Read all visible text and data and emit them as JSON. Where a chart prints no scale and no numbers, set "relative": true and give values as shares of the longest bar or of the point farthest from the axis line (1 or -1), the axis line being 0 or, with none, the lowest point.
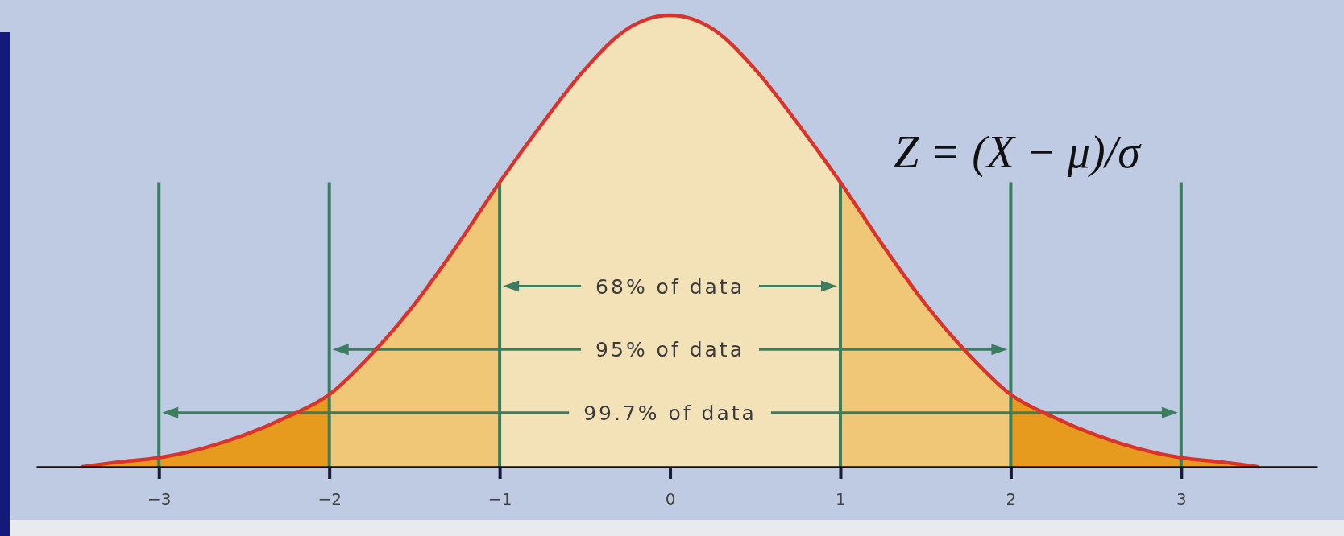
{
  "chart_data": {
    "type": "area",
    "relative": true,
    "xlim": [
      -3.72,
      3.8
    ],
    "xticks": [
      {
        "value": -3,
        "label": "−3"
      },
      {
        "value": -2,
        "label": "−2"
      },
      {
        "value": -1,
        "label": "−1"
      },
      0,
      1,
      2,
      3
    ],
    "series": [
      {
        "color": "#e69b1e",
        "x": [
          -3.45,
          -3.25,
          -3,
          -2.75,
          -2.5,
          -2.25,
          -2,
          0,
          2,
          2.25,
          2.5,
          2.75,
          3,
          3.25,
          3.45
        ],
        "values": [
          0,
          0.01,
          0.02,
          0.04,
          0.07,
          0.11,
          0.16,
          null,
          0.16,
          0.11,
          0.07,
          0.04,
          0.02,
          0.01,
          0
        ]
      },
      {
        "color": "#f0c777",
        "x": [
          -2,
          -1.75,
          -1.5,
          -1.25,
          -1,
          0,
          1,
          1.25,
          1.5,
          1.75,
          2
        ],
        "values": [
          0.16,
          0.25,
          0.36,
          0.49,
          0.63,
          null,
          0.63,
          0.49,
          0.36,
          0.25,
          0.16
        ]
      },
      {
        "color": "#f3e2b8",
        "x": [
          -1,
          -0.75,
          -0.5,
          -0.25,
          0,
          0.25,
          0.5,
          0.75,
          1
        ],
        "values": [
          0.63,
          0.76,
          0.88,
          0.97,
          1,
          0.97,
          0.88,
          0.76,
          0.63
        ]
      },
      {
        "type": "line",
        "color": "#d9342b",
        "x": [
          -3.45,
          -3.25,
          -3,
          -2.75,
          -2.5,
          -2.25,
          -2,
          -1.75,
          -1.5,
          -1.25,
          -1,
          -0.75,
          -0.5,
          -0.25,
          0,
          0.25,
          0.5,
          0.75,
          1,
          1.25,
          1.5,
          1.75,
          2,
          2.25,
          2.5,
          2.75,
          3,
          3.25,
          3.45
        ],
        "values": [
          0,
          0.01,
          0.02,
          0.04,
          0.07,
          0.11,
          0.16,
          0.25,
          0.36,
          0.49,
          0.63,
          0.76,
          0.88,
          0.97,
          1,
          0.97,
          0.88,
          0.76,
          0.63,
          0.49,
          0.36,
          0.25,
          0.16,
          0.11,
          0.07,
          0.04,
          0.02,
          0.01,
          0
        ]
      }
    ],
    "ref_lines": [
      {
        "axis": "x",
        "value": -1,
        "color": "#3b7e5f"
      },
      {
        "axis": "x",
        "value": 1,
        "color": "#3b7e5f"
      },
      {
        "axis": "x",
        "value": -2,
        "color": "#3b7e5f"
      },
      {
        "axis": "x",
        "value": 2,
        "color": "#3b7e5f"
      },
      {
        "axis": "x",
        "value": -3,
        "color": "#3b7e5f"
      },
      {
        "axis": "x",
        "value": 3,
        "color": "#3b7e5f"
      }
    ],
    "annotations": [
      "68% of data",
      "95% of data",
      "99.7% of data",
      "Z = (X − μ)/σ"
    ]
  }
}
